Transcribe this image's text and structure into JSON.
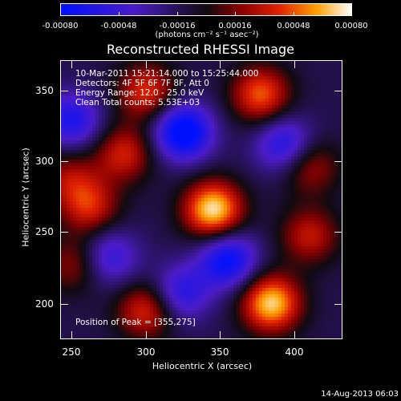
{
  "colorbar": {
    "tick_labels": [
      "-0.00080",
      "-0.00048",
      "-0.00016",
      "0.00016",
      "0.00048",
      "0.00080"
    ],
    "units": "(photons cm⁻² s⁻¹ asec⁻²)"
  },
  "title": "Reconstructed RHESSI Image",
  "info": {
    "time_range": "10-Mar-2011 15:21:14.000 to 15:25:44.000",
    "detectors": "Detectors: 4F 5F 6F 7F 8F, Att 0",
    "energy_range": "Energy Range: 12.0 - 25.0 keV",
    "clean": "Clean    Total counts: 5.53E+03",
    "peak": "Position of Peak = [355,275]"
  },
  "axes": {
    "xlabel": "Heliocentric X (arcsec)",
    "ylabel": "Heliocentric Y (arcsec)",
    "xticks": [
      "250",
      "300",
      "350",
      "400"
    ],
    "yticks": [
      "350",
      "300",
      "250",
      "200"
    ]
  },
  "image_sources": [
    {
      "x": 345,
      "y": 268,
      "amp": 1.0
    },
    {
      "x": 384,
      "y": 203,
      "amp": 0.95
    },
    {
      "x": 377,
      "y": 348,
      "amp": 0.7
    },
    {
      "x": 300,
      "y": 350,
      "amp": 0.6
    },
    {
      "x": 300,
      "y": 198,
      "amp": 0.6
    },
    {
      "x": 262,
      "y": 270,
      "amp": 0.55
    },
    {
      "x": 285,
      "y": 307,
      "amp": 0.55
    },
    {
      "x": 410,
      "y": 250,
      "amp": 0.5
    },
    {
      "x": 410,
      "y": 298,
      "amp": 0.45
    },
    {
      "x": 248,
      "y": 290,
      "amp": 0.4
    },
    {
      "x": 252,
      "y": 230,
      "amp": 0.4
    },
    {
      "x": 325,
      "y": 322,
      "amp": -0.9
    },
    {
      "x": 355,
      "y": 233,
      "amp": -0.75
    },
    {
      "x": 393,
      "y": 313,
      "amp": -0.6
    },
    {
      "x": 250,
      "y": 330,
      "amp": -0.6
    },
    {
      "x": 323,
      "y": 210,
      "amp": -0.55
    },
    {
      "x": 275,
      "y": 235,
      "amp": -0.5
    }
  ],
  "date_stamp": "14-Aug-2013 06:03"
}
